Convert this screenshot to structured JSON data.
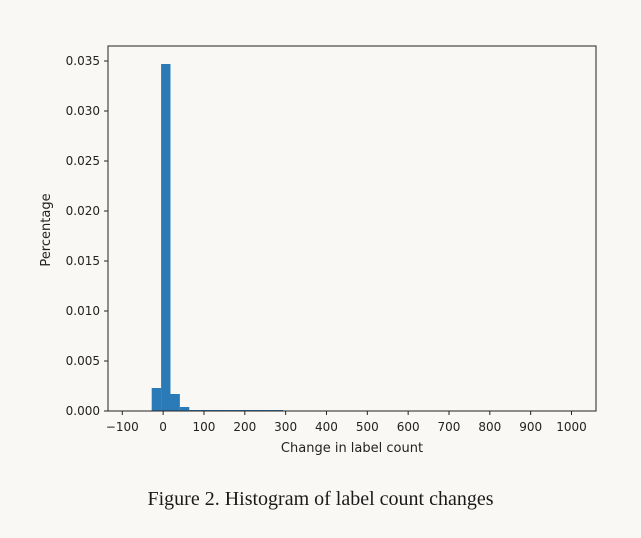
{
  "figure_caption": "Figure 2. Histogram of label count changes",
  "chart_data": {
    "type": "bar",
    "subtype": "histogram",
    "title": "",
    "xlabel": "Change in label count",
    "ylabel": "Percentage",
    "xlim": [
      -135,
      1060
    ],
    "ylim": [
      0,
      0.0365
    ],
    "grid": false,
    "bar_color": "#2a7ab7",
    "x_ticks": [
      -100,
      0,
      100,
      200,
      300,
      400,
      500,
      600,
      700,
      800,
      900,
      1000
    ],
    "x_tick_labels": [
      "−100",
      "0",
      "100",
      "200",
      "300",
      "400",
      "500",
      "600",
      "700",
      "800",
      "900",
      "1000"
    ],
    "y_ticks": [
      0,
      0.005,
      0.01,
      0.015,
      0.02,
      0.025,
      0.03,
      0.035
    ],
    "y_tick_labels": [
      "0.000",
      "0.005",
      "0.010",
      "0.015",
      "0.020",
      "0.025",
      "0.030",
      "0.035"
    ],
    "bins": [
      {
        "x0": -28,
        "x1": -5,
        "value": 0.0023
      },
      {
        "x0": -5,
        "x1": 18,
        "value": 0.0347
      },
      {
        "x0": 18,
        "x1": 41,
        "value": 0.0017
      },
      {
        "x0": 41,
        "x1": 64,
        "value": 0.0004
      },
      {
        "x0": 64,
        "x1": 87,
        "value": 0.0001
      },
      {
        "x0": 87,
        "x1": 110,
        "value": 0.0001
      },
      {
        "x0": 110,
        "x1": 133,
        "value": 5e-05
      },
      {
        "x0": 133,
        "x1": 156,
        "value": 5e-05
      },
      {
        "x0": 156,
        "x1": 179,
        "value": 5e-05
      },
      {
        "x0": 179,
        "x1": 202,
        "value": 4e-05
      },
      {
        "x0": 202,
        "x1": 225,
        "value": 4e-05
      },
      {
        "x0": 225,
        "x1": 248,
        "value": 3e-05
      },
      {
        "x0": 248,
        "x1": 271,
        "value": 3e-05
      },
      {
        "x0": 271,
        "x1": 294,
        "value": 3e-05
      }
    ]
  }
}
